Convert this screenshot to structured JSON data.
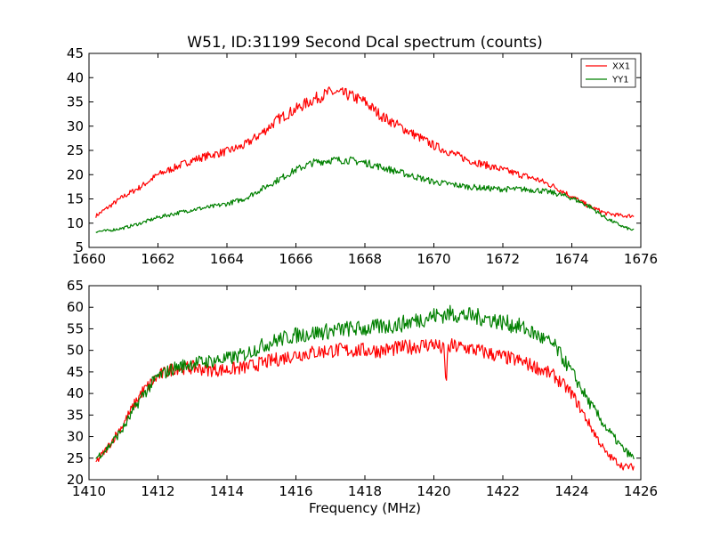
{
  "figure": {
    "title": "W51, ID:31199 Second Dcal spectrum (counts)",
    "xlabel": "Frequency (MHz)"
  },
  "colors": {
    "xx1": "#ff0000",
    "yy1": "#008000"
  },
  "chart_data": [
    {
      "type": "line",
      "title": "W51, ID:31199 Second Dcal spectrum (counts)",
      "xlabel": "",
      "ylabel": "",
      "xlim": [
        1660,
        1676
      ],
      "ylim": [
        5,
        45
      ],
      "xticks": [
        1660,
        1662,
        1664,
        1666,
        1668,
        1670,
        1672,
        1674,
        1676
      ],
      "yticks": [
        5,
        10,
        15,
        20,
        25,
        30,
        35,
        40,
        45
      ],
      "legend": {
        "position": "top-right",
        "entries": [
          "XX1",
          "YY1"
        ]
      },
      "grid": false,
      "series": [
        {
          "name": "XX1",
          "color": "#ff0000",
          "x": [
            1660.2,
            1660.5,
            1661,
            1661.5,
            1662,
            1662.5,
            1663,
            1663.5,
            1664,
            1664.5,
            1665,
            1665.5,
            1666,
            1666.5,
            1667,
            1667.5,
            1668,
            1668.5,
            1669,
            1669.5,
            1670,
            1670.5,
            1671,
            1671.5,
            1672,
            1672.5,
            1673,
            1673.5,
            1674,
            1674.5,
            1675,
            1675.5,
            1675.8
          ],
          "y": [
            11.5,
            13,
            15.5,
            17.5,
            20,
            21.5,
            23,
            24,
            24.8,
            26,
            28.5,
            31.5,
            33.5,
            35.5,
            37,
            36.5,
            35,
            32,
            30,
            28,
            26,
            24.5,
            23,
            22,
            21,
            20,
            19,
            17.5,
            15.5,
            13.5,
            12,
            11.5,
            11.5
          ]
        },
        {
          "name": "YY1",
          "color": "#008000",
          "x": [
            1660.2,
            1660.5,
            1661,
            1661.5,
            1662,
            1662.5,
            1663,
            1663.5,
            1664,
            1664.5,
            1665,
            1665.5,
            1666,
            1666.5,
            1667,
            1667.5,
            1668,
            1668.5,
            1669,
            1669.5,
            1670,
            1670.5,
            1671,
            1671.5,
            1672,
            1672.5,
            1673,
            1673.5,
            1674,
            1674.5,
            1675,
            1675.5,
            1675.8
          ],
          "y": [
            8.3,
            8.4,
            9,
            10,
            11.2,
            12,
            12.8,
            13.3,
            14,
            15,
            17,
            19,
            21,
            22.5,
            23,
            23,
            22.5,
            21.5,
            20.5,
            19.5,
            18.5,
            18,
            17.5,
            17.2,
            17,
            17,
            16.8,
            16.2,
            15.2,
            13.5,
            11,
            9.2,
            8.5
          ]
        }
      ]
    },
    {
      "type": "line",
      "title": "",
      "xlabel": "Frequency (MHz)",
      "ylabel": "",
      "xlim": [
        1410,
        1426
      ],
      "ylim": [
        20,
        65
      ],
      "xticks": [
        1410,
        1412,
        1414,
        1416,
        1418,
        1420,
        1422,
        1424,
        1426
      ],
      "yticks": [
        20,
        25,
        30,
        35,
        40,
        45,
        50,
        55,
        60,
        65
      ],
      "grid": false,
      "series": [
        {
          "name": "XX1",
          "color": "#ff0000",
          "x": [
            1410.2,
            1410.5,
            1411,
            1411.5,
            1412,
            1412.5,
            1413,
            1413.5,
            1414,
            1414.5,
            1415,
            1415.5,
            1416,
            1416.5,
            1417,
            1417.5,
            1418,
            1418.5,
            1419,
            1419.5,
            1420,
            1420.3,
            1420.35,
            1420.4,
            1420.5,
            1421,
            1421.5,
            1422,
            1422.5,
            1423,
            1423.5,
            1424,
            1424.5,
            1425,
            1425.5,
            1425.8
          ],
          "y": [
            24,
            27,
            33,
            40,
            44,
            46,
            46,
            45.5,
            45.5,
            46,
            47,
            48,
            49,
            49.5,
            50,
            50,
            50,
            50,
            50.5,
            51,
            51.5,
            50,
            41,
            50,
            51,
            50.5,
            49.5,
            48.5,
            47.5,
            46,
            44,
            40,
            33,
            26,
            23,
            23
          ]
        },
        {
          "name": "YY1",
          "color": "#008000",
          "x": [
            1410.2,
            1410.5,
            1411,
            1411.5,
            1412,
            1412.5,
            1413,
            1413.5,
            1414,
            1414.5,
            1415,
            1415.5,
            1416,
            1416.5,
            1417,
            1417.5,
            1418,
            1418.5,
            1419,
            1419.5,
            1420,
            1420.5,
            1421,
            1421.5,
            1422,
            1422.5,
            1423,
            1423.5,
            1424,
            1424.5,
            1425,
            1425.5,
            1425.8
          ],
          "y": [
            25,
            27,
            32,
            39,
            44,
            46,
            47,
            47.5,
            48,
            49,
            51,
            52.5,
            53.5,
            54,
            54.5,
            55,
            55,
            55.5,
            56,
            57,
            58,
            58.5,
            58,
            57.5,
            56.5,
            55.5,
            53.5,
            51,
            45,
            38,
            32,
            27,
            25
          ]
        }
      ]
    }
  ]
}
